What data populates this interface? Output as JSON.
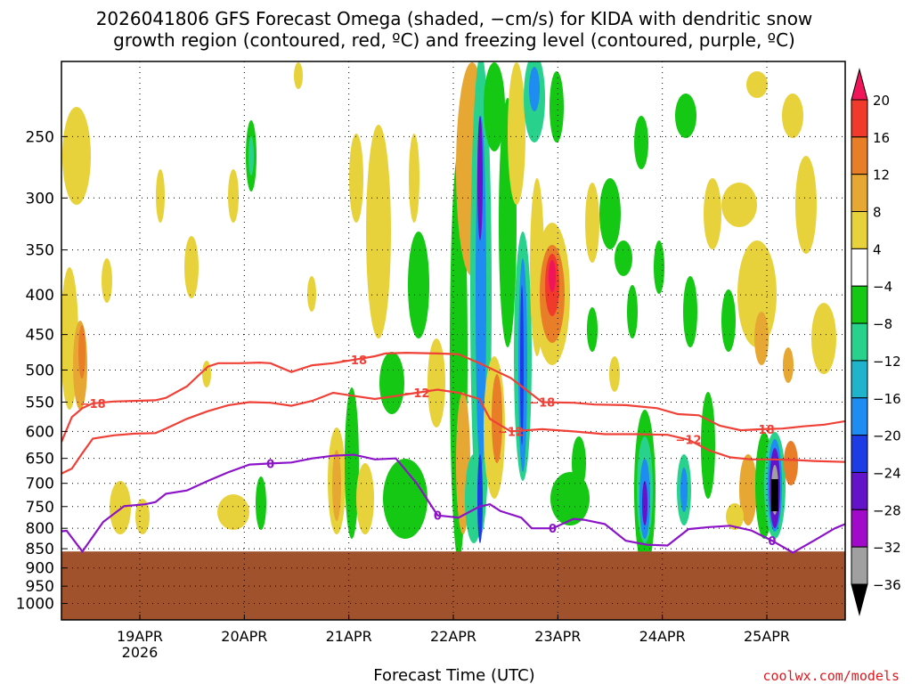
{
  "chart_data": {
    "type": "heatmap",
    "title_lines": [
      "2026041806 GFS Forecast Omega (shaded, −cm/s) for KIDA with dendritic snow",
      "growth region (contoured, red, ºC) and freezing level (contoured, purple, ºC)"
    ],
    "xlabel": "Forecast Time (UTC)",
    "credit": "coolwx.com/models",
    "y_ticks": [
      "250",
      "300",
      "350",
      "400",
      "450",
      "500",
      "550",
      "600",
      "650",
      "700",
      "750",
      "800",
      "850",
      "900",
      "950",
      "1000"
    ],
    "x_ticks": [
      "19APR",
      "20APR",
      "21APR",
      "22APR",
      "23APR",
      "24APR",
      "25APR"
    ],
    "x_year": "2026",
    "x_range": [
      "2026-04-18T06",
      "2026-04-25T18"
    ],
    "y_range_hpa": [
      200,
      1050
    ],
    "colorbar_labels": [
      "20",
      "16",
      "12",
      "8",
      "4",
      "−4",
      "−8",
      "−12",
      "−16",
      "−20",
      "−24",
      "−28",
      "−32",
      "−36"
    ],
    "colorbar_colors": [
      "#f0145a",
      "#f03a2c",
      "#e87e28",
      "#e6a832",
      "#e8d23c",
      "#ffffff",
      "#14c814",
      "#28d28c",
      "#20b4cc",
      "#1e8cf0",
      "#1e3ce6",
      "#6414c8",
      "#a00ac8",
      "#a0a0a0",
      "#000000"
    ],
    "terrain_color": "#a0522d",
    "surface_pressure_hpa": 857,
    "contour_labels": {
      "dgz_top": "−18",
      "dgz_bottom": "−12",
      "freezing": "0"
    },
    "series": [
      {
        "name": "−18",
        "t": [
          0.0,
          0.1,
          0.2,
          0.3,
          0.5,
          0.7,
          0.9,
          1.0,
          1.2,
          1.4,
          1.5,
          1.7,
          1.9,
          2.0,
          2.2,
          2.4,
          2.6,
          2.8,
          3.0,
          3.1,
          3.3,
          3.6,
          3.8,
          4.0,
          4.3,
          4.6,
          4.9,
          5.1,
          5.4,
          5.7,
          5.9,
          6.1,
          6.3,
          6.5,
          6.7,
          6.9,
          7.1,
          7.3,
          7.5
        ],
        "p": [
          619,
          575,
          560,
          552,
          549,
          548,
          547,
          543,
          525,
          495,
          490,
          490,
          489,
          490,
          503,
          493,
          490,
          485,
          480,
          476,
          475,
          476,
          477,
          490,
          512,
          550,
          551,
          554,
          555,
          560,
          570,
          572,
          590,
          598,
          596,
          595,
          591,
          588,
          582
        ]
      },
      {
        "name": "−12",
        "t": [
          0.0,
          0.1,
          0.2,
          0.3,
          0.5,
          0.7,
          0.9,
          1.0,
          1.2,
          1.4,
          1.6,
          1.8,
          2.0,
          2.2,
          2.4,
          2.6,
          2.8,
          3.0,
          3.2,
          3.4,
          3.6,
          3.8,
          4.0,
          4.1,
          4.3,
          4.6,
          4.9,
          5.2,
          5.5,
          5.8,
          6.0,
          6.2,
          6.4,
          6.6,
          6.8,
          7.0,
          7.2,
          7.5
        ],
        "p": [
          680,
          670,
          640,
          613,
          607,
          604,
          603,
          595,
          578,
          565,
          555,
          550,
          551,
          556,
          548,
          535,
          540,
          545,
          540,
          535,
          530,
          535,
          545,
          578,
          600,
          596,
          600,
          605,
          605,
          606,
          615,
          635,
          648,
          652,
          652,
          653,
          655,
          657
        ]
      },
      {
        "name": "0",
        "t": [
          0.0,
          0.05,
          0.2,
          0.4,
          0.6,
          0.8,
          0.9,
          1.0,
          1.2,
          1.4,
          1.6,
          1.8,
          2.0,
          2.2,
          2.4,
          2.6,
          2.8,
          3.0,
          3.2,
          3.4,
          3.6,
          3.8,
          4.0,
          4.1,
          4.2,
          4.4,
          4.5,
          4.7,
          4.9,
          5.0,
          5.2,
          5.4,
          5.6,
          5.8,
          6.0,
          6.2,
          6.4,
          6.6,
          6.8,
          7.0,
          7.2,
          7.4,
          7.5
        ],
        "p": [
          807,
          806,
          857,
          785,
          749,
          745,
          740,
          722,
          715,
          695,
          677,
          662,
          660,
          658,
          650,
          645,
          643,
          652,
          650,
          700,
          770,
          775,
          750,
          745,
          760,
          775,
          800,
          800,
          778,
          780,
          790,
          830,
          840,
          842,
          802,
          797,
          794,
          805,
          830,
          860,
          830,
          800,
          790
        ]
      }
    ]
  }
}
